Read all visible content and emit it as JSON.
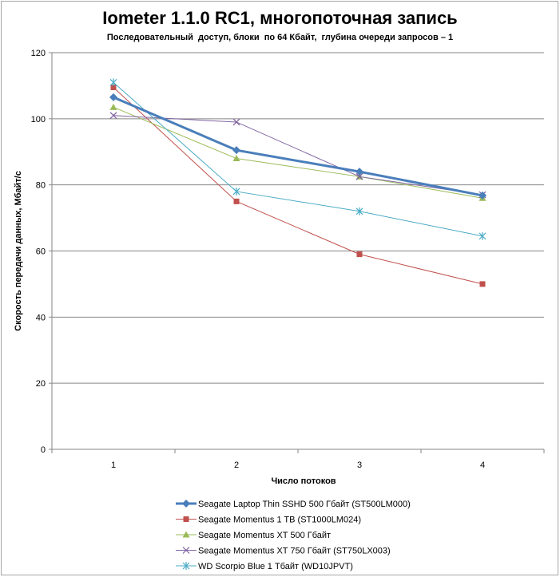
{
  "chart_data": {
    "type": "line",
    "title": "Iometer 1.1.0 RC1, многопоточная запись",
    "subtitle": "Последовательный  доступ, блоки  по 64 Кбайт,  глубина очереди запросов – 1",
    "xlabel": "Число  потоков",
    "ylabel": "Скорость  передачи данных, Мбайт/с",
    "categories": [
      "1",
      "2",
      "3",
      "4"
    ],
    "ylim": [
      0,
      120
    ],
    "yticks": [
      "0",
      "20",
      "40",
      "60",
      "80",
      "100",
      "120"
    ],
    "grid": true,
    "legend_position": "bottom",
    "series": [
      {
        "name": "Seagate Laptop Thin SSHD 500 Гбайт (ST500LM000)",
        "values": [
          106.5,
          90.5,
          84,
          76.8
        ],
        "color": "#4a7ebb",
        "marker": "diamond",
        "bold": true
      },
      {
        "name": "Seagate Momentus 1 TB (ST1000LM024)",
        "values": [
          109.5,
          75,
          59,
          50
        ],
        "color": "#c0504d",
        "marker": "square",
        "bold": false
      },
      {
        "name": "Seagate Momentus XT 500 Гбайт",
        "values": [
          103.5,
          88,
          82.5,
          76
        ],
        "color": "#9bbb59",
        "marker": "triangle",
        "bold": false
      },
      {
        "name": "Seagate Momentus XT 750 Гбайт (ST750LX003)",
        "values": [
          101,
          99,
          82.5,
          77
        ],
        "color": "#8064a2",
        "marker": "x",
        "bold": false
      },
      {
        "name": "WD Scorpio Blue 1 Тбайт (WD10JPVT)",
        "values": [
          111,
          78,
          72,
          64.5
        ],
        "color": "#4bacc6",
        "marker": "star",
        "bold": false
      }
    ]
  }
}
